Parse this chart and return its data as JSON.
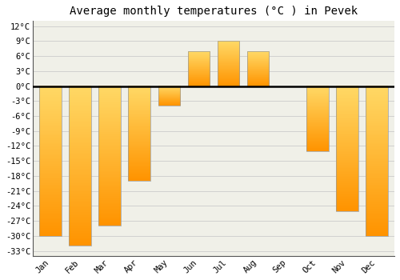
{
  "title": "Average monthly temperatures (°C ) in Pevek",
  "months": [
    "Jan",
    "Feb",
    "Mar",
    "Apr",
    "May",
    "Jun",
    "Jul",
    "Aug",
    "Sep",
    "Oct",
    "Nov",
    "Dec"
  ],
  "values": [
    -30,
    -32,
    -28,
    -19,
    -4,
    7,
    9,
    7,
    0,
    -13,
    -25,
    -30
  ],
  "bar_color_top": "#FFB732",
  "bar_color_bottom": "#FF9500",
  "bar_edge_color": "#999999",
  "ylim": [
    -34,
    13
  ],
  "yticks": [
    -33,
    -30,
    -27,
    -24,
    -21,
    -18,
    -15,
    -12,
    -9,
    -6,
    -3,
    0,
    3,
    6,
    9,
    12
  ],
  "ytick_labels": [
    "-33°C",
    "-30°C",
    "-27°C",
    "-24°C",
    "-21°C",
    "-18°C",
    "-15°C",
    "-12°C",
    "-9°C",
    "-6°C",
    "-3°C",
    "0°C",
    "3°C",
    "6°C",
    "9°C",
    "12°C"
  ],
  "bg_color": "#ffffff",
  "plot_bg_color": "#f0f0e8",
  "grid_color": "#cccccc",
  "title_fontsize": 10,
  "tick_fontsize": 7.5,
  "font_family": "monospace",
  "bar_width": 0.75
}
